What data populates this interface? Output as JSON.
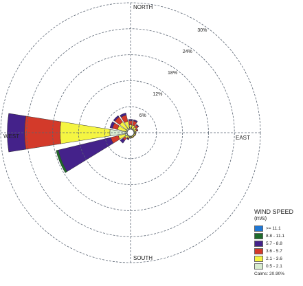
{
  "chart_data": {
    "type": "wind-rose",
    "directions": [
      "N",
      "NNE",
      "NE",
      "ENE",
      "E",
      "ESE",
      "SE",
      "SSE",
      "S",
      "SSW",
      "SW",
      "WSW",
      "W",
      "WNW",
      "NW",
      "NNW"
    ],
    "compass_labels": {
      "north": "NORTH",
      "east": "EAST",
      "south": "SOUTH",
      "west": "WEST"
    },
    "ring_labels": [
      "6%",
      "12%",
      "18%",
      "24%",
      "30%"
    ],
    "ring_values": [
      6,
      12,
      18,
      24,
      30
    ],
    "legend": {
      "title": "WIND SPEED",
      "unit": "(m/s)",
      "calms": "Calms: 20.90%",
      "classes": [
        {
          "label": ">= 11.1",
          "color": "#1f77d4"
        },
        {
          "label": "8.8 - 11.1",
          "color": "#1e6b2a"
        },
        {
          "label": "5.7 - 8.8",
          "color": "#44228a"
        },
        {
          "label": "3.6 - 5.7",
          "color": "#d33a2a"
        },
        {
          "label": "2.1 - 3.6",
          "color": "#f5f542"
        },
        {
          "label": "0.5 - 2.1",
          "color": "#d8ecd0"
        }
      ]
    },
    "series_percent_by_direction": {
      "N": [
        0,
        0,
        0.3,
        1.0,
        0.8,
        0.2
      ],
      "NNE": [
        0,
        0,
        0.3,
        1.0,
        0.8,
        0.2
      ],
      "NE": [
        0,
        0,
        0.2,
        0.6,
        0.6,
        0.2
      ],
      "ENE": [
        0,
        0,
        0.1,
        0.3,
        0.5,
        0.1
      ],
      "E": [
        0,
        0,
        0,
        0.1,
        0.3,
        0.1
      ],
      "ESE": [
        0,
        0,
        0,
        0.1,
        0.3,
        0.1
      ],
      "SE": [
        0,
        0,
        0,
        0.1,
        0.2,
        0.1
      ],
      "SSE": [
        0,
        0,
        0,
        0.1,
        0.3,
        0.1
      ],
      "S": [
        0,
        0,
        0,
        0.1,
        0.3,
        0.1
      ],
      "SSW": [
        0,
        0,
        0.2,
        0.2,
        0.4,
        0.1
      ],
      "SW": [
        0,
        0,
        0.8,
        0.6,
        0.6,
        0.2
      ],
      "WSW": [
        0,
        0.5,
        12.5,
        1.8,
        1.6,
        0.5
      ],
      "W": [
        0,
        0,
        4.0,
        8.2,
        11.5,
        4.0
      ],
      "WNW": [
        0,
        0,
        0.6,
        1.2,
        2.0,
        0.3
      ],
      "NW": [
        0,
        0,
        0.4,
        1.4,
        2.0,
        0.3
      ],
      "NNW": [
        0,
        0,
        0.5,
        1.5,
        1.6,
        0.3
      ]
    }
  }
}
